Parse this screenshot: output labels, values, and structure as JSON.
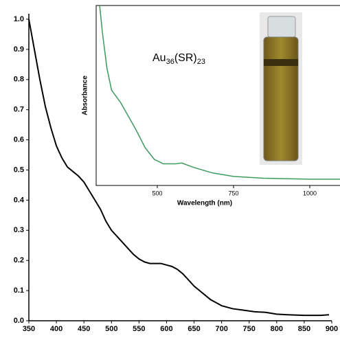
{
  "chart_data": [
    {
      "type": "line",
      "x": [
        350,
        355,
        360,
        370,
        380,
        390,
        400,
        410,
        420,
        430,
        440,
        450,
        460,
        470,
        480,
        490,
        500,
        510,
        520,
        530,
        540,
        550,
        560,
        570,
        580,
        590,
        600,
        610,
        620,
        630,
        640,
        650,
        660,
        670,
        680,
        690,
        700,
        720,
        740,
        760,
        780,
        800,
        820,
        850,
        880,
        895
      ],
      "series": [
        {
          "color": "#000000",
          "values": [
            1.0,
            0.95,
            0.9,
            0.8,
            0.71,
            0.64,
            0.58,
            0.54,
            0.51,
            0.495,
            0.48,
            0.46,
            0.43,
            0.4,
            0.37,
            0.33,
            0.3,
            0.28,
            0.26,
            0.24,
            0.22,
            0.205,
            0.195,
            0.19,
            0.19,
            0.19,
            0.185,
            0.18,
            0.17,
            0.155,
            0.135,
            0.115,
            0.1,
            0.085,
            0.07,
            0.06,
            0.05,
            0.04,
            0.035,
            0.03,
            0.028,
            0.022,
            0.02,
            0.018,
            0.018,
            0.02
          ]
        }
      ],
      "xlim": [
        350,
        900
      ],
      "ylim": [
        0,
        1.0
      ],
      "xticks": [
        350,
        400,
        450,
        500,
        550,
        600,
        650,
        700,
        750,
        800,
        850,
        900
      ],
      "yticks": [
        {
          "value": 0,
          "label": "0.0"
        },
        0.1,
        0.2,
        0.3,
        0.4,
        0.5,
        0.6,
        0.7,
        0.8,
        0.9,
        {
          "value": 1,
          "label": "1.0"
        }
      ]
    },
    {
      "type": "line",
      "x_label": "Wavelength (nm)",
      "y_label": "Absorbance",
      "annotation": [
        "Au",
        "36",
        "(SR)",
        "23"
      ],
      "x": [
        311,
        320,
        335,
        350,
        380,
        400,
        430,
        460,
        490,
        520,
        560,
        580,
        620,
        680,
        750,
        850,
        1000,
        1100
      ],
      "series": [
        {
          "color": "#3a9a5c",
          "values": [
            1.0,
            0.85,
            0.65,
            0.53,
            0.46,
            0.4,
            0.31,
            0.21,
            0.145,
            0.12,
            0.12,
            0.125,
            0.1,
            0.07,
            0.05,
            0.04,
            0.035,
            0.035
          ]
        }
      ],
      "xlim": [
        300,
        1100
      ],
      "ylim": [
        0,
        1
      ],
      "xticks": [
        500,
        750,
        1000
      ]
    }
  ]
}
